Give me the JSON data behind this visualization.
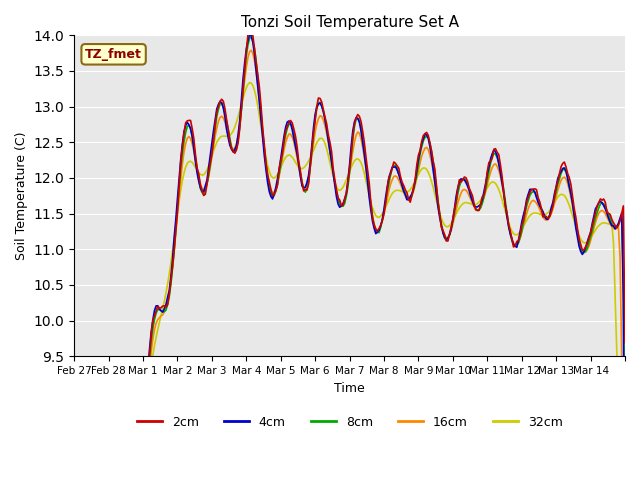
{
  "title": "Tonzi Soil Temperature Set A",
  "xlabel": "Time",
  "ylabel": "Soil Temperature (C)",
  "ylim": [
    9.5,
    14.0
  ],
  "annotation_text": "TZ_fmet",
  "annotation_color": "#8B0000",
  "annotation_bg": "#FFFFCC",
  "bg_color": "#E8E8E8",
  "series": {
    "2cm": {
      "color": "#CC0000"
    },
    "4cm": {
      "color": "#0000CC"
    },
    "8cm": {
      "color": "#00AA00"
    },
    "16cm": {
      "color": "#FF8800"
    },
    "32cm": {
      "color": "#CCCC00"
    }
  },
  "x_tick_labels": [
    "Feb 27",
    "Feb 28",
    "Mar 1",
    "Mar 2",
    "Mar 3",
    "Mar 4",
    "Mar 5",
    "Mar 6",
    "Mar 7",
    "Mar 8",
    "Mar 9",
    "Mar 10",
    "Mar 11",
    "Mar 12",
    "Mar 13",
    "Mar 14",
    ""
  ],
  "num_points": 337
}
